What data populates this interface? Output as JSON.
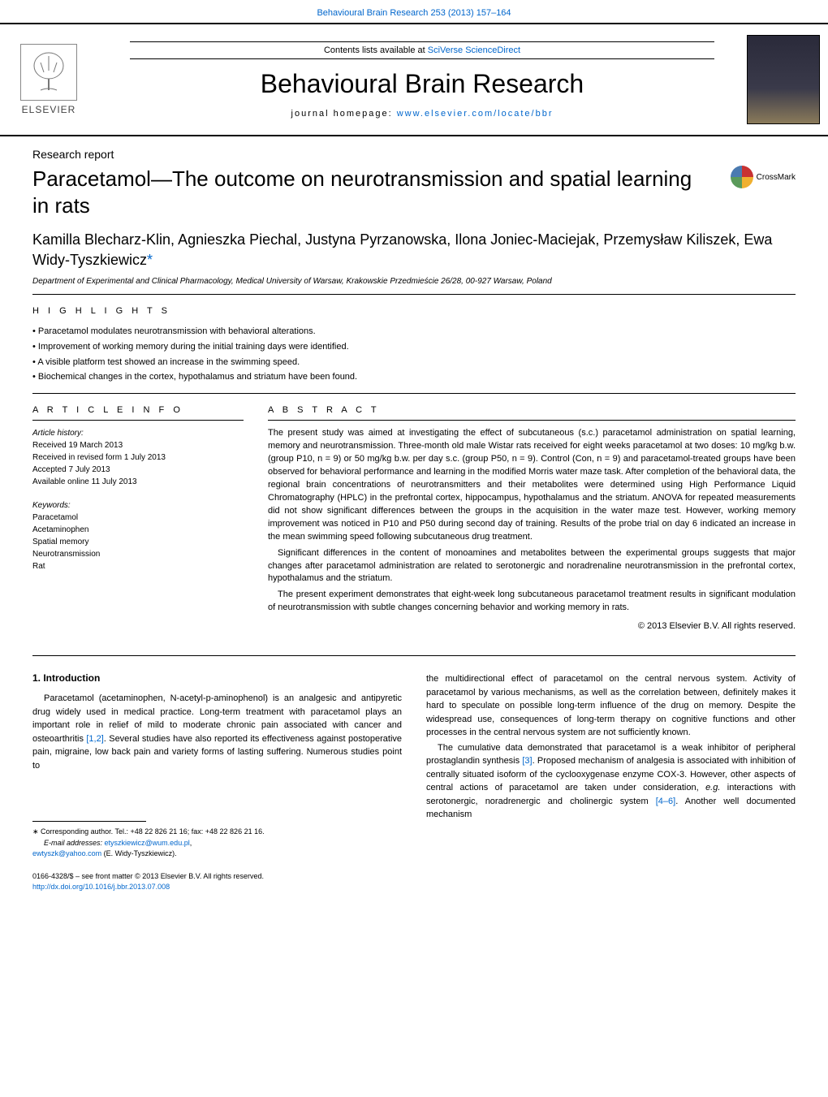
{
  "header": {
    "citation": "Behavioural Brain Research 253 (2013) 157–164",
    "contents_text_prefix": "Contents lists available at ",
    "contents_link": "SciVerse ScienceDirect",
    "journal_title": "Behavioural Brain Research",
    "homepage_prefix": "journal homepage: ",
    "homepage_link": "www.elsevier.com/locate/bbr",
    "publisher": "ELSEVIER"
  },
  "crossmark": "CrossMark",
  "article": {
    "section": "Research report",
    "title": "Paracetamol—The outcome on neurotransmission and spatial learning in rats",
    "authors": "Kamilla Blecharz-Klin, Agnieszka Piechal, Justyna Pyrzanowska, Ilona Joniec-Maciejak, Przemysław Kiliszek, Ewa Widy-Tyszkiewicz",
    "corresponding_marker": "*",
    "affiliation": "Department of Experimental and Clinical Pharmacology, Medical University of Warsaw, Krakowskie Przedmieście 26/28, 00-927 Warsaw, Poland"
  },
  "highlights": {
    "label": "H I G H L I G H T S",
    "items": [
      "Paracetamol modulates neurotransmission with behavioral alterations.",
      "Improvement of working memory during the initial training days were identified.",
      "A visible platform test showed an increase in the swimming speed.",
      "Biochemical changes in the cortex, hypothalamus and striatum have been found."
    ]
  },
  "info": {
    "label": "A R T I C L E   I N F O",
    "history_label": "Article history:",
    "history": [
      "Received 19 March 2013",
      "Received in revised form 1 July 2013",
      "Accepted 7 July 2013",
      "Available online 11 July 2013"
    ],
    "keywords_label": "Keywords:",
    "keywords": [
      "Paracetamol",
      "Acetaminophen",
      "Spatial memory",
      "Neurotransmission",
      "Rat"
    ]
  },
  "abstract": {
    "label": "A B S T R A C T",
    "paragraphs": [
      "The present study was aimed at investigating the effect of subcutaneous (s.c.) paracetamol administration on spatial learning, memory and neurotransmission. Three-month old male Wistar rats received for eight weeks paracetamol at two doses: 10 mg/kg b.w. (group P10, n = 9) or 50 mg/kg b.w. per day s.c. (group P50, n = 9). Control (Con, n = 9) and paracetamol-treated groups have been observed for behavioral performance and learning in the modified Morris water maze task. After completion of the behavioral data, the regional brain concentrations of neurotransmitters and their metabolites were determined using High Performance Liquid Chromatography (HPLC) in the prefrontal cortex, hippocampus, hypothalamus and the striatum. ANOVA for repeated measurements did not show significant differences between the groups in the acquisition in the water maze test. However, working memory improvement was noticed in P10 and P50 during second day of training. Results of the probe trial on day 6 indicated an increase in the mean swimming speed following subcutaneous drug treatment.",
      "Significant differences in the content of monoamines and metabolites between the experimental groups suggests that major changes after paracetamol administration are related to serotonergic and noradrenaline neurotransmission in the prefrontal cortex, hypothalamus and the striatum.",
      "The present experiment demonstrates that eight-week long subcutaneous paracetamol treatment results in significant modulation of neurotransmission with subtle changes concerning behavior and working memory in rats."
    ],
    "copyright": "© 2013 Elsevier B.V. All rights reserved."
  },
  "body": {
    "intro_heading": "1.  Introduction",
    "left_paragraphs": [
      "Paracetamol (acetaminophen, N-acetyl-p-aminophenol) is an analgesic and antipyretic drug widely used in medical practice. Long-term treatment with paracetamol plays an important role in relief of mild to moderate chronic pain associated with cancer and osteoarthritis [1,2]. Several studies have also reported its effectiveness against postoperative pain, migraine, low back pain and variety forms of lasting suffering. Numerous studies point to"
    ],
    "right_paragraphs": [
      "the multidirectional effect of paracetamol on the central nervous system. Activity of paracetamol by various mechanisms, as well as the correlation between, definitely makes it hard to speculate on possible long-term influence of the drug on memory. Despite the widespread use, consequences of long-term therapy on cognitive functions and other processes in the central nervous system are not sufficiently known.",
      "The cumulative data demonstrated that paracetamol is a weak inhibitor of peripheral prostaglandin synthesis [3]. Proposed mechanism of analgesia is associated with inhibition of centrally situated isoform of the cyclooxygenase enzyme COX-3. However, other aspects of central actions of paracetamol are taken under consideration, e.g. interactions with serotonergic, noradrenergic and cholinergic system [4–6]. Another well documented mechanism"
    ]
  },
  "footnote": {
    "corresponding": "Corresponding author. Tel.: +48 22 826 21 16; fax: +48 22 826 21 16.",
    "email_label": "E-mail addresses: ",
    "email1": "etyszkiewicz@wum.edu.pl",
    "email2": "ewtyszk@yahoo.com",
    "email_name": " (E. Widy-Tyszkiewicz)."
  },
  "bottom": {
    "issn": "0166-4328/$ – see front matter © 2013 Elsevier B.V. All rights reserved.",
    "doi": "http://dx.doi.org/10.1016/j.bbr.2013.07.008"
  },
  "colors": {
    "link": "#0066cc",
    "text": "#000000",
    "rule": "#000000"
  }
}
